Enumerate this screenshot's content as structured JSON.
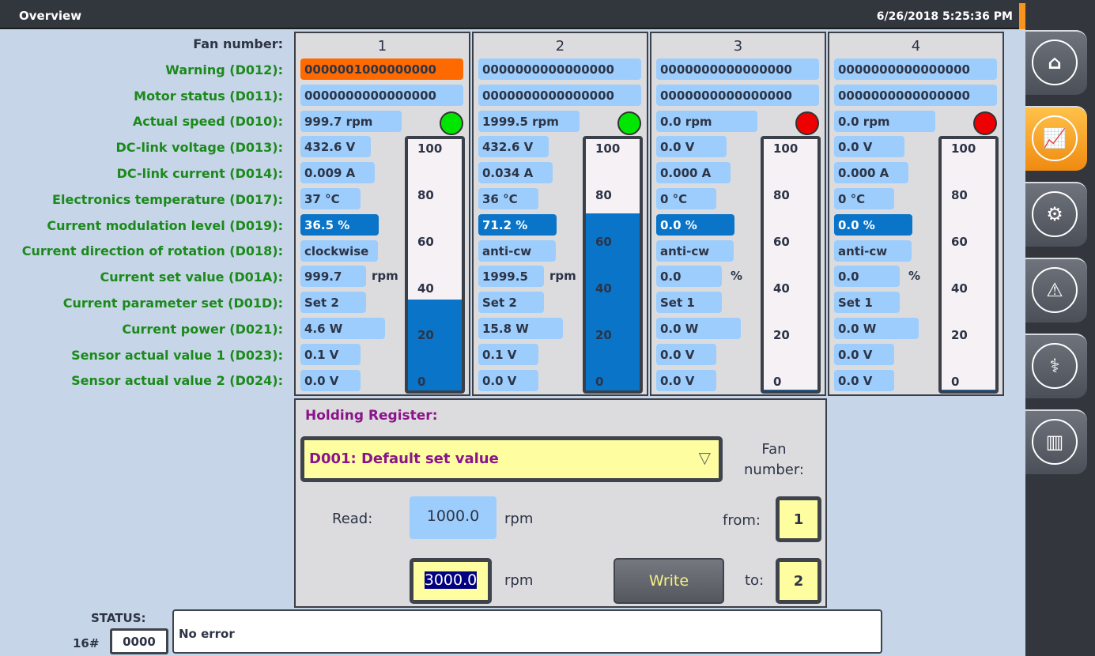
{
  "header": {
    "title": "Overview",
    "datetime": "6/26/2018 5:25:36 PM"
  },
  "nav": [
    {
      "icon": "home-icon",
      "glyph": "⌂",
      "active": false
    },
    {
      "icon": "trend-chart-icon",
      "glyph": "📈",
      "active": true
    },
    {
      "icon": "gear-icon",
      "glyph": "⚙",
      "active": false
    },
    {
      "icon": "warning-icon",
      "glyph": "⚠",
      "active": false
    },
    {
      "icon": "stethoscope-icon",
      "glyph": "⚕",
      "active": false
    },
    {
      "icon": "mixer-sliders-icon",
      "glyph": "▥",
      "active": false
    }
  ],
  "labels": [
    "Fan number:",
    "Warning (D012):",
    "Motor status (D011):",
    "Actual speed (D010):",
    "DC-link voltage (D013):",
    "DC-link current (D014):",
    "Electronics temperature (D017):",
    "Current modulation level (D019):",
    "Current direction of rotation (D018):",
    "Current set value (D01A):",
    "Current parameter set (D01D):",
    "Current power (D021):",
    "Sensor actual value 1 (D023):",
    "Sensor actual value 2 (D024):"
  ],
  "colors": {
    "warning_active": "#fe6a00",
    "field": "#9ccdfc",
    "modulation": "#0a74c8",
    "led_ok": "#00e600",
    "led_off": "#ee0000"
  },
  "gauge_ticks": [
    "100",
    "80",
    "60",
    "40",
    "20",
    "0"
  ],
  "fans": [
    {
      "number": "1",
      "warning": "0000001000000000",
      "warning_active": true,
      "motor": "0000000000000000",
      "speed": "999.7 rpm",
      "led": "#00e600",
      "voltage": "432.6 V",
      "current": "0.009 A",
      "temp": "37 °C",
      "modulation": "36.5 %",
      "level_percent": 36.5,
      "rotation": "clockwise",
      "set_value": "999.7",
      "set_unit": "rpm",
      "param_set": "Set 2",
      "power": "4.6 W",
      "sensor1": "0.1 V",
      "sensor2": "0.0 V"
    },
    {
      "number": "2",
      "warning": "0000000000000000",
      "warning_active": false,
      "motor": "0000000000000000",
      "speed": "1999.5 rpm",
      "led": "#00e600",
      "voltage": "432.6 V",
      "current": "0.034 A",
      "temp": "36 °C",
      "modulation": "71.2 %",
      "level_percent": 71.2,
      "rotation": "anti-cw",
      "set_value": "1999.5",
      "set_unit": "rpm",
      "param_set": "Set 2",
      "power": "15.8 W",
      "sensor1": "0.1 V",
      "sensor2": "0.0 V"
    },
    {
      "number": "3",
      "warning": "0000000000000000",
      "warning_active": false,
      "motor": "0000000000000000",
      "speed": "0.0 rpm",
      "led": "#ee0000",
      "voltage": "0.0 V",
      "current": "0.000 A",
      "temp": "0 °C",
      "modulation": "0.0 %",
      "level_percent": 0,
      "rotation": "anti-cw",
      "set_value": "0.0",
      "set_unit": "%",
      "param_set": "Set 1",
      "power": "0.0 W",
      "sensor1": "0.0 V",
      "sensor2": "0.0 V"
    },
    {
      "number": "4",
      "warning": "0000000000000000",
      "warning_active": false,
      "motor": "0000000000000000",
      "speed": "0.0 rpm",
      "led": "#ee0000",
      "voltage": "0.0 V",
      "current": "0.000 A",
      "temp": "0 °C",
      "modulation": "0.0 %",
      "level_percent": 0,
      "rotation": "anti-cw",
      "set_value": "0.0",
      "set_unit": "%",
      "param_set": "Set 1",
      "power": "0.0 W",
      "sensor1": "0.0 V",
      "sensor2": "0.0 V"
    }
  ],
  "holding": {
    "title": "Holding Register:",
    "register": "D001: Default set value",
    "fan_number_label": "Fan number:",
    "read_label": "Read:",
    "read_value": "1000.0",
    "read_unit": "rpm",
    "write_value": "3000.0",
    "write_unit": "rpm",
    "write_button": "Write",
    "from_label": "from:",
    "from_value": "1",
    "to_label": "to:",
    "to_value": "2"
  },
  "status": {
    "label": "STATUS:",
    "prefix": "16#",
    "code": "0000",
    "message": "No error"
  }
}
